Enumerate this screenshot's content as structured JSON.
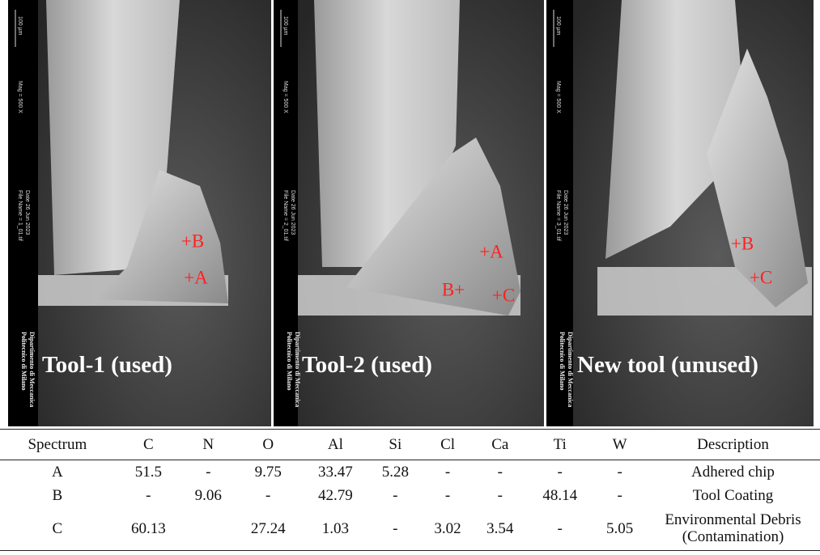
{
  "panels": [
    {
      "label": "Tool-1 (used)",
      "markers": [
        "+B",
        "+A"
      ],
      "sidebar": [
        "100 µm",
        "Mag =  500 X",
        "File Name = 1_01.tif",
        "Date 26 Jun 2023",
        "Politecnico di Milano",
        "Dipartimento di Meccanica"
      ]
    },
    {
      "label": "Tool-2 (used)",
      "markers": [
        "+A",
        "B+",
        "+C"
      ],
      "sidebar": [
        "100 µm",
        "Mag =  500 X",
        "File Name = 2_01.tif",
        "Date 26 Jun 2023",
        "Politecnico di Milano",
        "Dipartimento di Meccanica"
      ]
    },
    {
      "label": "New tool (unused)",
      "markers": [
        "+B",
        "+C"
      ],
      "sidebar": [
        "100 µm",
        "Mag =  500 X",
        "File Name = 3_01.tif",
        "Date 26 Jun 2023",
        "Politecnico di Milano",
        "Dipartimento di Meccanica"
      ]
    }
  ],
  "table": {
    "header": [
      "Spectrum",
      "C",
      "N",
      "O",
      "Al",
      "Si",
      "Cl",
      "Ca",
      "Ti",
      "W",
      "Description"
    ],
    "rows": [
      [
        "A",
        "51.5",
        "-",
        "9.75",
        "33.47",
        "5.28",
        "-",
        "-",
        "-",
        "-",
        "Adhered chip"
      ],
      [
        "B",
        "-",
        "9.06",
        "-",
        "42.79",
        "-",
        "-",
        "-",
        "48.14",
        "-",
        "Tool Coating"
      ],
      [
        "C",
        "60.13",
        null,
        "27.24",
        "1.03",
        "-",
        "3.02",
        "3.54",
        "-",
        "5.05",
        "Environmental Debris (Contamination)"
      ]
    ]
  }
}
